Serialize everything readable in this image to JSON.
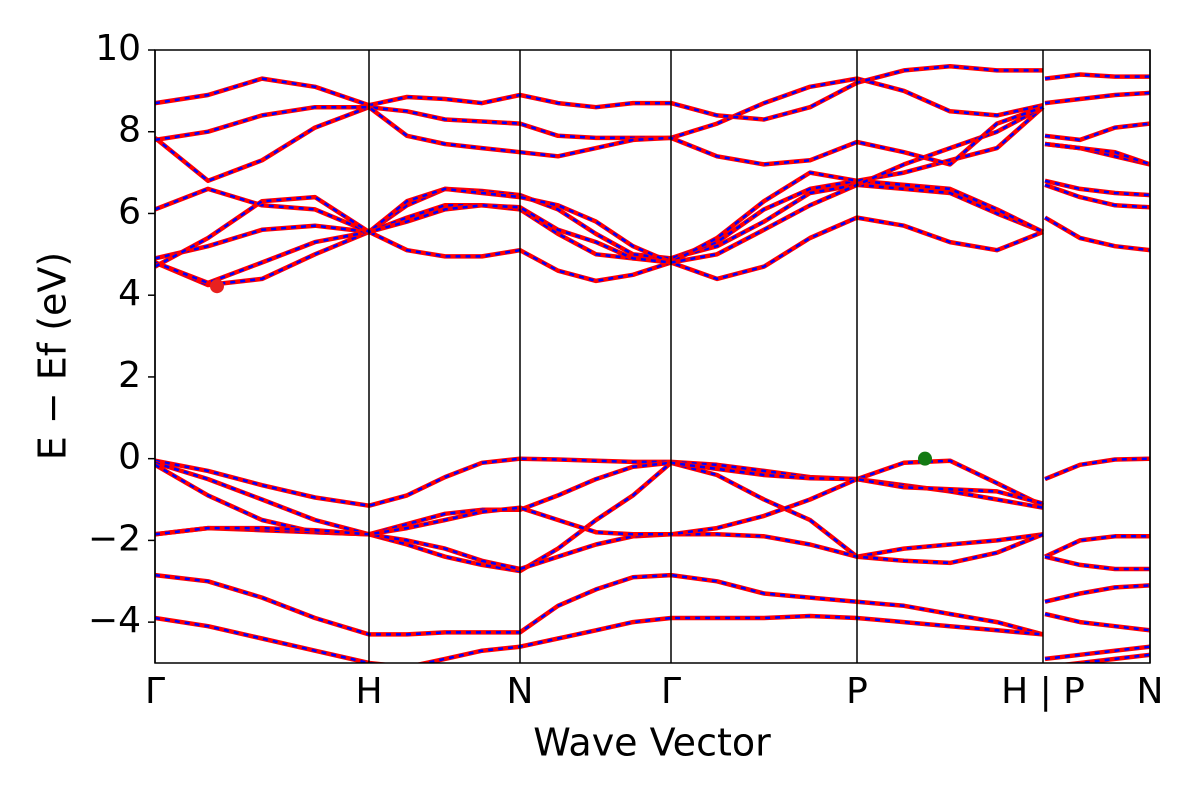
{
  "chart_data": {
    "type": "band",
    "ylabel": "E − Ef (eV)",
    "xlabel": "Wave Vector",
    "xlim": [
      0,
      9.95
    ],
    "ylim": [
      -5,
      10
    ],
    "xticks": [
      {
        "value": 0,
        "label": "Γ"
      },
      {
        "value": 2.14,
        "label": "H"
      },
      {
        "value": 3.65,
        "label": "N"
      },
      {
        "value": 5.16,
        "label": "Γ"
      },
      {
        "value": 7.02,
        "label": "P"
      },
      {
        "value": 8.88,
        "label": "H | P"
      },
      {
        "value": 9.95,
        "label": "N"
      }
    ],
    "yticks": [
      {
        "value": -4,
        "label": "−4"
      },
      {
        "value": -2,
        "label": "−2"
      },
      0,
      2,
      4,
      6,
      8,
      10
    ],
    "line_color": "#ff0000",
    "dash_color": "#0000ff",
    "x": [
      0,
      0.53,
      1.07,
      1.6,
      2.14,
      2.52,
      2.9,
      3.27,
      3.65,
      4.03,
      4.41,
      4.78,
      5.16,
      5.62,
      6.09,
      6.55,
      7.02,
      7.49,
      7.95,
      8.42,
      8.88,
      8.885,
      8.9,
      9.25,
      9.6,
      9.95
    ],
    "series": [
      {
        "values": [
          -0.05,
          -0.3,
          -0.65,
          -0.95,
          -1.15,
          -0.9,
          -0.45,
          -0.1,
          0,
          -0.02,
          -0.05,
          -0.08,
          -0.08,
          -0.15,
          -0.3,
          -0.45,
          -0.5,
          -0.1,
          -0.05,
          -0.6,
          -1.15,
          null,
          -0.5,
          -0.15,
          -0.02,
          0
        ]
      },
      {
        "values": [
          -0.1,
          -0.5,
          -1.0,
          -1.5,
          -1.85,
          -1.6,
          -1.35,
          -1.25,
          -1.25,
          -0.9,
          -0.5,
          -0.2,
          -0.1,
          -0.4,
          -1.0,
          -1.5,
          -2.4,
          -2.2,
          -2.1,
          -2.0,
          -1.85,
          null,
          -2.4,
          -2.0,
          -1.9,
          -1.9
        ]
      },
      {
        "values": [
          -0.15,
          -0.9,
          -1.5,
          -1.8,
          -1.85,
          -2.1,
          -2.4,
          -2.6,
          -2.75,
          -2.2,
          -1.5,
          -0.9,
          -0.1,
          -0.25,
          -0.4,
          -0.48,
          -0.5,
          -0.65,
          -0.8,
          -1.0,
          -1.2,
          null,
          -2.4,
          -2.6,
          -2.7,
          -2.7
        ]
      },
      {
        "values": [
          -1.85,
          -1.7,
          -1.75,
          -1.8,
          -1.85,
          -2.0,
          -2.2,
          -2.5,
          -2.7,
          -2.4,
          -2.1,
          -1.9,
          -1.85,
          -1.85,
          -1.9,
          -2.1,
          -2.4,
          -2.5,
          -2.55,
          -2.3,
          -1.85,
          null,
          -3.5,
          -3.3,
          -3.15,
          -3.1
        ]
      },
      {
        "values": [
          -1.85,
          -1.7,
          -1.7,
          -1.75,
          -1.85,
          -1.7,
          -1.5,
          -1.3,
          -1.2,
          -1.5,
          -1.8,
          -1.85,
          -1.85,
          -1.7,
          -1.4,
          -1.0,
          -0.5,
          -0.7,
          -0.75,
          -0.8,
          -1.1,
          null,
          -3.8,
          -4.0,
          -4.1,
          -4.2
        ]
      },
      {
        "values": [
          -2.85,
          -3.0,
          -3.4,
          -3.9,
          -4.3,
          -4.3,
          -4.25,
          -4.25,
          -4.25,
          -3.6,
          -3.2,
          -2.9,
          -2.85,
          -3.0,
          -3.3,
          -3.4,
          -3.5,
          -3.6,
          -3.8,
          -4.0,
          -4.3,
          null,
          -4.9,
          -4.8,
          -4.7,
          -4.6
        ]
      },
      {
        "values": [
          -3.9,
          -4.1,
          -4.4,
          -4.7,
          -5.0,
          -5.1,
          -4.9,
          -4.7,
          -4.6,
          -4.4,
          -4.2,
          -4.0,
          -3.9,
          -3.9,
          -3.9,
          -3.85,
          -3.9,
          -4.0,
          -4.1,
          -4.2,
          -4.3,
          null,
          -5.1,
          -5.0,
          -4.9,
          -4.8
        ]
      },
      {
        "values": [
          4.8,
          4.25,
          4.4,
          5.0,
          5.55,
          5.1,
          4.95,
          4.95,
          5.1,
          4.6,
          4.35,
          4.5,
          4.8,
          4.4,
          4.7,
          5.4,
          5.9,
          5.7,
          5.3,
          5.1,
          5.55,
          null,
          5.9,
          5.4,
          5.2,
          5.1
        ]
      },
      {
        "values": [
          4.8,
          4.3,
          4.8,
          5.3,
          5.55,
          5.9,
          6.2,
          6.2,
          6.1,
          5.5,
          5.0,
          4.9,
          4.9,
          5.2,
          5.8,
          6.5,
          6.7,
          6.6,
          6.5,
          6.0,
          5.55,
          null,
          6.7,
          6.4,
          6.2,
          6.15
        ]
      },
      {
        "values": [
          4.9,
          5.2,
          5.6,
          5.7,
          5.55,
          6.2,
          6.6,
          6.55,
          6.45,
          6.1,
          5.5,
          5.0,
          4.9,
          5.3,
          6.1,
          6.6,
          6.8,
          6.7,
          6.6,
          6.1,
          5.55,
          null,
          6.8,
          6.6,
          6.5,
          6.45
        ]
      },
      {
        "values": [
          6.1,
          6.6,
          6.2,
          6.1,
          5.55,
          6.3,
          6.6,
          6.5,
          6.4,
          6.2,
          5.8,
          5.2,
          4.8,
          5.4,
          6.3,
          7.0,
          6.8,
          7.0,
          7.3,
          7.6,
          8.6,
          null,
          7.7,
          7.6,
          7.4,
          7.2
        ]
      },
      {
        "values": [
          4.7,
          5.4,
          6.3,
          6.4,
          5.55,
          5.8,
          6.1,
          6.2,
          6.15,
          5.6,
          5.3,
          4.9,
          4.8,
          5.0,
          5.6,
          6.2,
          6.7,
          7.2,
          7.6,
          8.0,
          8.6,
          null,
          7.9,
          7.8,
          8.1,
          8.2
        ]
      },
      {
        "values": [
          7.85,
          6.8,
          7.3,
          8.1,
          8.6,
          8.5,
          8.3,
          8.25,
          8.2,
          7.9,
          7.85,
          7.85,
          7.85,
          8.2,
          8.7,
          9.1,
          9.3,
          9.0,
          8.5,
          8.4,
          8.65,
          null,
          8.7,
          8.8,
          8.9,
          8.95
        ]
      },
      {
        "values": [
          8.7,
          8.9,
          9.3,
          9.1,
          8.65,
          8.85,
          8.8,
          8.7,
          8.9,
          8.7,
          8.6,
          8.7,
          8.7,
          8.4,
          8.3,
          8.6,
          9.2,
          9.5,
          9.6,
          9.5,
          9.5,
          null,
          9.3,
          9.4,
          9.35,
          9.35
        ]
      },
      {
        "values": [
          7.8,
          8.0,
          8.4,
          8.6,
          8.6,
          7.9,
          7.7,
          7.6,
          7.5,
          7.4,
          7.6,
          7.8,
          7.85,
          7.4,
          7.2,
          7.3,
          7.75,
          7.5,
          7.2,
          8.2,
          8.6,
          null,
          7.7,
          7.6,
          7.5,
          7.2
        ]
      }
    ],
    "points": [
      {
        "x": 0.62,
        "y": 4.22,
        "color": "#e8211f"
      },
      {
        "x": 7.7,
        "y": 0,
        "color": "#137a13"
      }
    ]
  }
}
